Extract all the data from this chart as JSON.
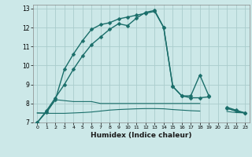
{
  "xlabel": "Humidex (Indice chaleur)",
  "background_color": "#cce8e8",
  "grid_color": "#aacccc",
  "line_color": "#1a6e6a",
  "xlim": [
    -0.5,
    23.5
  ],
  "ylim": [
    7,
    13.2
  ],
  "xticks": [
    0,
    1,
    2,
    3,
    4,
    5,
    6,
    7,
    8,
    9,
    10,
    11,
    12,
    13,
    14,
    15,
    16,
    17,
    18,
    19,
    20,
    21,
    22,
    23
  ],
  "yticks": [
    7,
    8,
    9,
    10,
    11,
    12,
    13
  ],
  "series": [
    {
      "x": [
        0,
        1,
        2,
        3,
        4,
        5,
        6,
        7,
        8,
        9,
        10,
        11,
        12,
        13,
        14,
        15,
        16,
        17,
        18,
        19,
        20,
        21,
        22,
        23
      ],
      "y": [
        7.0,
        7.6,
        8.3,
        9.0,
        9.8,
        10.5,
        11.1,
        11.5,
        11.9,
        12.2,
        12.1,
        12.5,
        12.8,
        12.9,
        12.0,
        8.9,
        8.4,
        8.4,
        9.5,
        8.4,
        null,
        7.8,
        7.65,
        7.5
      ],
      "marker": true,
      "markersize": 2.5,
      "linewidth": 1.0
    },
    {
      "x": [
        0,
        1,
        2,
        3,
        4,
        5,
        6,
        7,
        8,
        9,
        10,
        11,
        12,
        13,
        14,
        15,
        16,
        17,
        18,
        19,
        20,
        21,
        22,
        23
      ],
      "y": [
        7.0,
        7.55,
        8.2,
        9.8,
        10.6,
        11.3,
        11.9,
        12.15,
        12.25,
        12.45,
        12.55,
        12.65,
        12.75,
        12.85,
        12.0,
        8.9,
        8.4,
        8.3,
        8.3,
        8.35,
        null,
        7.75,
        7.6,
        7.5
      ],
      "marker": true,
      "markersize": 2.5,
      "linewidth": 1.0
    },
    {
      "x": [
        0,
        1,
        2,
        3,
        4,
        5,
        6,
        7,
        8,
        9,
        10,
        11,
        12,
        13,
        14,
        15,
        16,
        17,
        18,
        19,
        20,
        21,
        22,
        23
      ],
      "y": [
        7.5,
        7.5,
        8.2,
        8.15,
        8.1,
        8.1,
        8.1,
        8.0,
        8.0,
        8.0,
        8.0,
        8.0,
        8.0,
        8.0,
        8.0,
        8.0,
        8.0,
        8.0,
        8.0,
        null,
        null,
        7.75,
        7.6,
        7.5
      ],
      "marker": false,
      "markersize": 0,
      "linewidth": 0.8
    },
    {
      "x": [
        0,
        1,
        2,
        3,
        4,
        5,
        6,
        7,
        8,
        9,
        10,
        11,
        12,
        13,
        14,
        15,
        16,
        17,
        18,
        19,
        20,
        21,
        22,
        23
      ],
      "y": [
        7.5,
        7.48,
        7.48,
        7.48,
        7.5,
        7.52,
        7.55,
        7.6,
        7.65,
        7.68,
        7.7,
        7.72,
        7.73,
        7.73,
        7.72,
        7.68,
        7.65,
        7.62,
        7.6,
        null,
        null,
        7.58,
        7.52,
        7.5
      ],
      "marker": false,
      "markersize": 0,
      "linewidth": 0.8
    }
  ]
}
